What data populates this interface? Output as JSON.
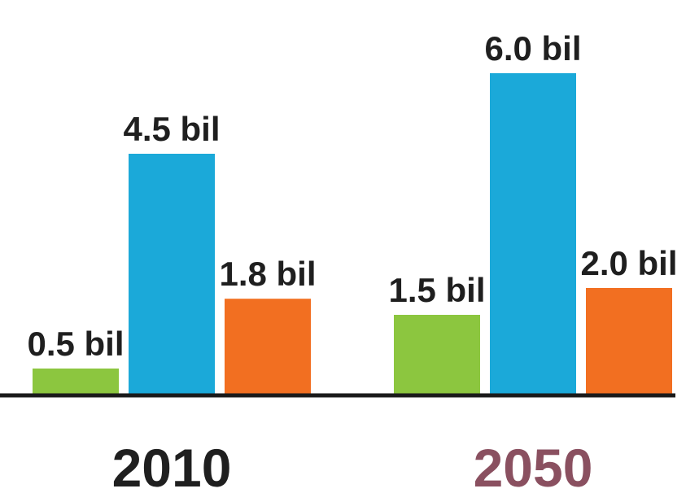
{
  "chart_data": {
    "type": "bar",
    "title": "",
    "xlabel": "",
    "ylabel": "",
    "categories": [
      "2010",
      "2050"
    ],
    "series": [
      {
        "color": "#8cc63f",
        "values": [
          0.5,
          1.5
        ],
        "labels": [
          "0.5 bil",
          "1.5 bil"
        ]
      },
      {
        "color": "#1ba9d9",
        "values": [
          4.5,
          6.0
        ],
        "labels": [
          "4.5 bil",
          "6.0 bil"
        ]
      },
      {
        "color": "#f26f21",
        "values": [
          1.8,
          2.0
        ],
        "labels": [
          "1.8 bil",
          "2.0 bil"
        ]
      }
    ],
    "category_label_colors": [
      "#1f1f1f",
      "#8a5060"
    ],
    "ylim": [
      0,
      6.6
    ],
    "grid": false,
    "legend": "none"
  }
}
